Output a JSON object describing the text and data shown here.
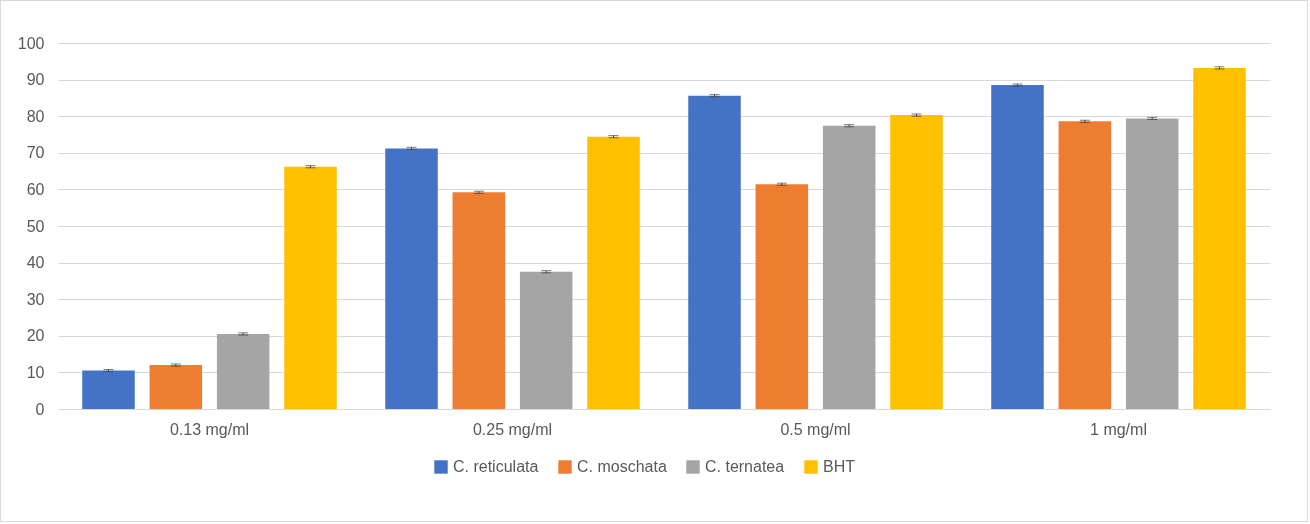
{
  "chart_data": {
    "type": "bar",
    "categories": [
      "0.13 mg/ml",
      "0.25 mg/ml",
      "0.5 mg/ml",
      "1 mg/ml"
    ],
    "series": [
      {
        "name": "C. reticulata",
        "color": "#4472c4",
        "values": [
          10.5,
          71.2,
          85.6,
          88.5
        ],
        "errors": [
          0.3,
          0.3,
          0.3,
          0.3
        ]
      },
      {
        "name": "C. moschata",
        "color": "#ed7d31",
        "values": [
          12,
          59.2,
          61.4,
          78.6
        ],
        "errors": [
          0.3,
          0.3,
          0.3,
          0.3
        ]
      },
      {
        "name": "C. ternatea",
        "color": "#a5a5a5",
        "values": [
          20.5,
          37.5,
          77.4,
          79.4
        ],
        "errors": [
          0.3,
          0.3,
          0.3,
          0.3
        ]
      },
      {
        "name": "BHT",
        "color": "#ffc000",
        "values": [
          66.2,
          74.4,
          80.3,
          93.2
        ],
        "errors": [
          0.3,
          0.3,
          0.3,
          0.3
        ]
      }
    ],
    "ylim": [
      0,
      100
    ],
    "yticks": [
      0,
      10,
      20,
      30,
      40,
      50,
      60,
      70,
      80,
      90,
      100
    ],
    "grid": "y",
    "legend": "bottom"
  }
}
